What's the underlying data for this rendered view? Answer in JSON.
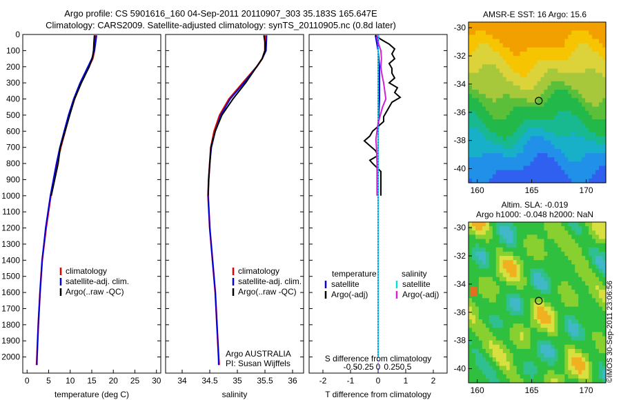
{
  "header": {
    "title_line1": "Argo profile: CS 5901616_160 04-Sep-2011 20110907_303 35.183S 165.647E",
    "title_line2": "Climatology: CARS2009. Satellite-adjusted climatology: synTS_20110905.nc (0.8d later)"
  },
  "maps": {
    "sst_title": "AMSR-E SST: 16 Argo: 15.6",
    "sla_title_line1": "Altim. SLA: -0.019",
    "sla_title_line2": "Argo h1000: -0.048 h2000: NaN",
    "lat_ticks": [
      -30,
      -32,
      -34,
      -36,
      -38,
      -40
    ],
    "lon_ticks": [
      160,
      165,
      170
    ],
    "argo_position": {
      "lon": 165.647,
      "lat": -35.183
    }
  },
  "stamp": "©IMOS 30-Sep-2011 23:06:56",
  "annotations": {
    "operator": "Argo AUSTRALIA",
    "pi": "PI: Susan Wijffels",
    "diff_col1": "temperature",
    "diff_col2": "salinity",
    "diff_satellite": "satellite",
    "diff_argo": "Argo(-adj)"
  },
  "colors": {
    "climatology": "#e00000",
    "satellite": "#0000e0",
    "argo": "#000000",
    "sal_sat": "#00e0e0",
    "sal_argo": "#d020d0"
  },
  "chart_data": [
    {
      "type": "line",
      "xlabel": "temperature (deg C)",
      "ylabel": "",
      "xlim": [
        -1,
        31
      ],
      "ylim": [
        2100,
        0
      ],
      "xticks": [
        0,
        5,
        10,
        15,
        20,
        25,
        30
      ],
      "yticks": [
        0,
        100,
        200,
        300,
        400,
        500,
        600,
        700,
        800,
        900,
        1000,
        1100,
        1200,
        1300,
        1400,
        1500,
        1600,
        1700,
        1800,
        1900,
        2000
      ],
      "legend": [
        "climatology",
        "satellite-adj. clim.",
        "Argo(..raw -QC)"
      ],
      "series": [
        {
          "name": "climatology",
          "depth": [
            5,
            50,
            100,
            150,
            200,
            300,
            400,
            500,
            600,
            700,
            800,
            1000,
            1200,
            1400,
            1600,
            1800,
            2000,
            2050
          ],
          "values": [
            15.9,
            15.8,
            15.6,
            15.2,
            14.3,
            12.5,
            11.0,
            9.8,
            8.8,
            7.8,
            6.9,
            5.5,
            4.4,
            3.5,
            3.0,
            2.6,
            2.3,
            2.2
          ]
        },
        {
          "name": "satellite-adj. clim.",
          "depth": [
            5,
            50,
            100,
            150,
            200,
            300,
            400,
            500,
            600,
            700,
            800,
            1000,
            1200,
            1400,
            1600,
            1800,
            2000,
            2050
          ],
          "values": [
            16.1,
            15.9,
            15.6,
            15.0,
            14.1,
            12.3,
            10.8,
            9.6,
            8.6,
            7.6,
            6.8,
            5.4,
            4.3,
            3.5,
            3.0,
            2.6,
            2.3,
            2.3
          ]
        },
        {
          "name": "Argo(..raw -QC)",
          "depth": [
            5,
            50,
            100,
            150,
            200,
            300,
            400,
            500,
            600,
            700,
            800,
            900,
            1000
          ],
          "values": [
            15.6,
            15.5,
            15.4,
            15.1,
            14.4,
            12.6,
            11.0,
            9.9,
            8.8,
            7.7,
            7.2,
            6.4,
            5.6
          ]
        }
      ]
    },
    {
      "type": "line",
      "xlabel": "salinity",
      "ylabel": "",
      "xlim": [
        33.7,
        36.2
      ],
      "ylim": [
        2100,
        0
      ],
      "xticks": [
        34,
        34.5,
        35,
        35.5,
        36
      ],
      "legend": [
        "climatology",
        "satellite-adj. clim.",
        "Argo(..raw -QC)"
      ],
      "series": [
        {
          "name": "climatology",
          "depth": [
            5,
            100,
            150,
            200,
            300,
            400,
            500,
            600,
            700,
            800,
            900,
            1000,
            1200,
            1400,
            1600,
            1800,
            2000,
            2050
          ],
          "values": [
            35.5,
            35.5,
            35.45,
            35.35,
            35.1,
            34.85,
            34.68,
            34.58,
            34.52,
            34.5,
            34.48,
            34.47,
            34.5,
            34.55,
            34.6,
            34.63,
            34.66,
            34.67
          ]
        },
        {
          "name": "satellite-adj. clim.",
          "depth": [
            5,
            100,
            150,
            200,
            300,
            400,
            500,
            600,
            700,
            800,
            900,
            1000,
            1200,
            1400,
            1600,
            1800,
            2000,
            2050
          ],
          "values": [
            35.53,
            35.52,
            35.45,
            35.35,
            35.12,
            34.87,
            34.7,
            34.6,
            34.53,
            34.5,
            34.48,
            34.47,
            34.5,
            34.55,
            34.6,
            34.63,
            34.66,
            34.66
          ]
        },
        {
          "name": "Argo(..raw -QC)",
          "depth": [
            5,
            50,
            100,
            150,
            200,
            300,
            400,
            500,
            600,
            700,
            800,
            900,
            1000
          ],
          "values": [
            35.48,
            35.5,
            35.5,
            35.45,
            35.35,
            35.15,
            34.92,
            34.72,
            34.6,
            34.52,
            34.5,
            34.48,
            34.47
          ]
        }
      ]
    },
    {
      "type": "line",
      "xlabel": "T difference from climatology",
      "x2label": "S difference from climatology",
      "xlim": [
        -2.5,
        2.5
      ],
      "ylim": [
        2100,
        0
      ],
      "xticks": [
        -2,
        -1,
        0,
        1,
        2
      ],
      "x2ticks": [
        -0.5,
        -0.25,
        0,
        0.25,
        0.5
      ],
      "series": [
        {
          "name": "temperature satellite",
          "depth": [
            5,
            100,
            200,
            400,
            600,
            800,
            1000,
            1200,
            1400,
            1600,
            1800,
            2000
          ],
          "values": [
            -0.1,
            0.0,
            0.05,
            0.05,
            0.0,
            0.0,
            0.0,
            0.0,
            0.0,
            0.0,
            0.0,
            0.0
          ]
        },
        {
          "name": "temperature Argo(-adj)",
          "depth": [
            5,
            30,
            60,
            90,
            120,
            150,
            180,
            210,
            240,
            270,
            300,
            330,
            360,
            390,
            420,
            450,
            480,
            510,
            540,
            570,
            600,
            630,
            660,
            690,
            720,
            750,
            780,
            800,
            850,
            900,
            1000
          ],
          "values": [
            -0.1,
            0.1,
            0.4,
            0.6,
            0.5,
            0.6,
            0.4,
            0.5,
            0.5,
            0.6,
            0.4,
            0.7,
            0.6,
            0.8,
            0.5,
            0.4,
            0.3,
            0.2,
            0.2,
            0.0,
            -0.2,
            -0.3,
            -0.5,
            -0.3,
            -0.1,
            0.0,
            -0.3,
            -0.2,
            0.1,
            0.1,
            0.1
          ]
        },
        {
          "name": "salinity satellite",
          "depth": [
            5,
            100,
            200,
            400,
            600,
            800,
            1000,
            1200,
            1400,
            1600,
            1800,
            2000
          ],
          "values": [
            0.01,
            0.0,
            0.0,
            0.0,
            0.0,
            0.0,
            0.0,
            0.0,
            0.0,
            0.0,
            0.0,
            0.0
          ]
        },
        {
          "name": "salinity Argo(-adj)",
          "depth": [
            5,
            50,
            100,
            150,
            200,
            250,
            300,
            350,
            400,
            450,
            500,
            550,
            600,
            650,
            700,
            800,
            900,
            1000
          ],
          "values": [
            -0.02,
            0.0,
            0.05,
            0.06,
            0.05,
            0.07,
            0.1,
            0.12,
            0.14,
            0.08,
            0.04,
            0.0,
            -0.02,
            -0.04,
            -0.03,
            -0.02,
            -0.02,
            -0.02
          ]
        }
      ]
    }
  ]
}
